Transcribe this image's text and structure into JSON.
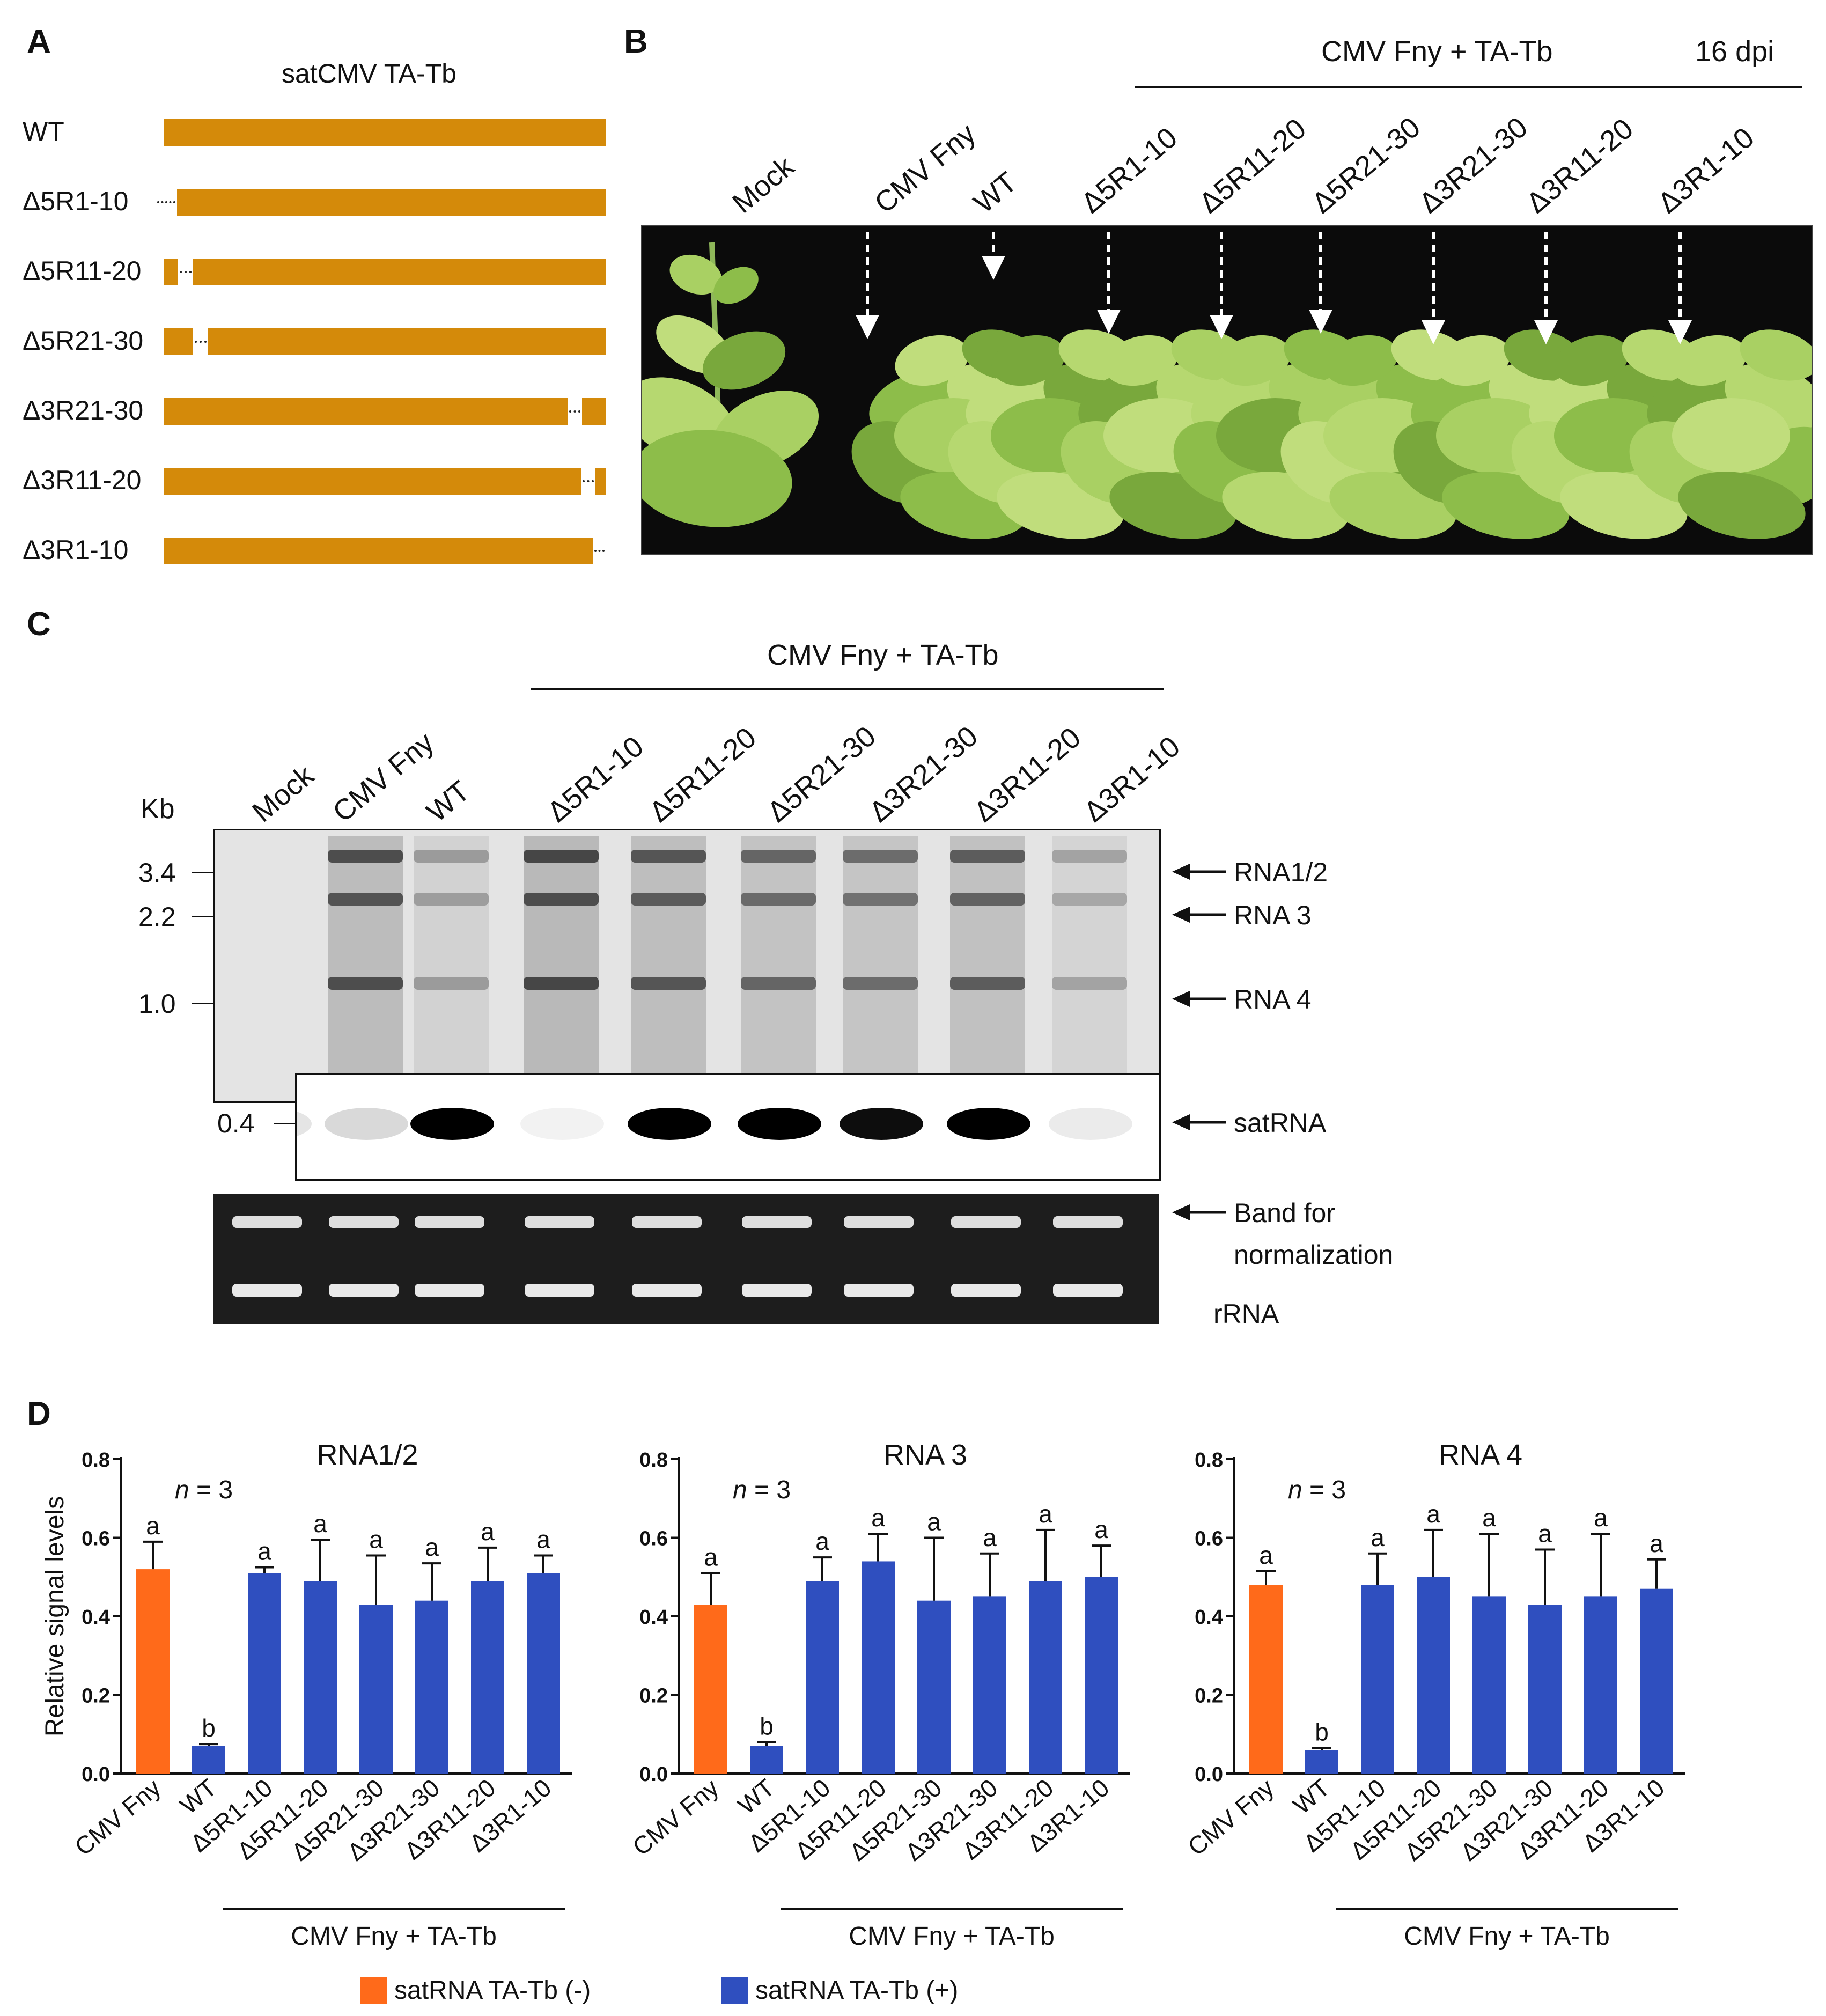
{
  "panels": {
    "a": "A",
    "b": "B",
    "c": "C",
    "d": "D"
  },
  "panel_a": {
    "title": "satCMV TA-Tb",
    "constructs": [
      {
        "label": "WT"
      },
      {
        "label": "Δ5R1-10"
      },
      {
        "label": "Δ5R11-20"
      },
      {
        "label": "Δ5R21-30"
      },
      {
        "label": "Δ3R21-30"
      },
      {
        "label": "Δ3R11-20"
      },
      {
        "label": "Δ3R1-10"
      }
    ]
  },
  "panel_b": {
    "group_label": "CMV Fny + TA-Tb",
    "timepoint": "16 dpi",
    "lanes": [
      "Mock",
      "CMV Fny",
      "WT",
      "Δ5R1-10",
      "Δ5R11-20",
      "Δ5R21-30",
      "Δ3R21-30",
      "Δ3R11-20",
      "Δ3R1-10"
    ]
  },
  "panel_c": {
    "group_label": "CMV Fny + TA-Tb",
    "kb_label": "Kb",
    "lanes": [
      "Mock",
      "CMV Fny",
      "WT",
      "Δ5R1-10",
      "Δ5R11-20",
      "Δ5R21-30",
      "Δ3R21-30",
      "Δ3R11-20",
      "Δ3R1-10"
    ],
    "markers": [
      "3.4",
      "2.2",
      "1.0"
    ],
    "sat_marker": "0.4",
    "bands": [
      "RNA1/2",
      "RNA 3",
      "RNA 4",
      "satRNA"
    ],
    "norm_label_1": "Band for",
    "norm_label_2": "normalization",
    "rrna_label": "rRNA"
  },
  "panel_d": {
    "ylabel": "Relative signal levels",
    "group_label": "CMV Fny + TA-Tb",
    "n_label_italic": "n",
    "n_label_rest": " = 3",
    "yticks": [
      "0.0",
      "0.2",
      "0.4",
      "0.6",
      "0.8"
    ],
    "legend": [
      {
        "label": "satRNA TA-Tb (-)",
        "color": "#ff6a1a"
      },
      {
        "label": "satRNA TA-Tb (+)",
        "color": "#2f4fbf"
      }
    ]
  },
  "chart_data": [
    {
      "type": "bar",
      "title": "RNA1/2",
      "ylabel": "Relative signal levels",
      "ylim": [
        0,
        0.8
      ],
      "categories": [
        "CMV Fny",
        "WT",
        "Δ5R1-10",
        "Δ5R11-20",
        "Δ5R21-30",
        "Δ3R21-30",
        "Δ3R11-20",
        "Δ3R1-10"
      ],
      "values": [
        0.52,
        0.07,
        0.51,
        0.49,
        0.43,
        0.44,
        0.49,
        0.51
      ],
      "errors": [
        0.07,
        0.005,
        0.015,
        0.105,
        0.125,
        0.095,
        0.085,
        0.045
      ],
      "letters": [
        "a",
        "b",
        "a",
        "a",
        "a",
        "a",
        "a",
        "a"
      ]
    },
    {
      "type": "bar",
      "title": "RNA 3",
      "ylabel": "Relative signal levels",
      "ylim": [
        0,
        0.8
      ],
      "categories": [
        "CMV Fny",
        "WT",
        "Δ5R1-10",
        "Δ5R11-20",
        "Δ5R21-30",
        "Δ3R21-30",
        "Δ3R11-20",
        "Δ3R1-10"
      ],
      "values": [
        0.43,
        0.07,
        0.49,
        0.54,
        0.44,
        0.45,
        0.49,
        0.5
      ],
      "errors": [
        0.08,
        0.01,
        0.06,
        0.07,
        0.16,
        0.11,
        0.13,
        0.08
      ],
      "letters": [
        "a",
        "b",
        "a",
        "a",
        "a",
        "a",
        "a",
        "a"
      ]
    },
    {
      "type": "bar",
      "title": "RNA 4",
      "ylabel": "Relative signal levels",
      "ylim": [
        0,
        0.8
      ],
      "categories": [
        "CMV Fny",
        "WT",
        "Δ5R1-10",
        "Δ5R11-20",
        "Δ5R21-30",
        "Δ3R21-30",
        "Δ3R11-20",
        "Δ3R1-10"
      ],
      "values": [
        0.48,
        0.06,
        0.48,
        0.5,
        0.45,
        0.43,
        0.45,
        0.47
      ],
      "errors": [
        0.035,
        0.005,
        0.08,
        0.12,
        0.16,
        0.14,
        0.16,
        0.075
      ],
      "letters": [
        "a",
        "b",
        "a",
        "a",
        "a",
        "a",
        "a",
        "a"
      ]
    }
  ]
}
